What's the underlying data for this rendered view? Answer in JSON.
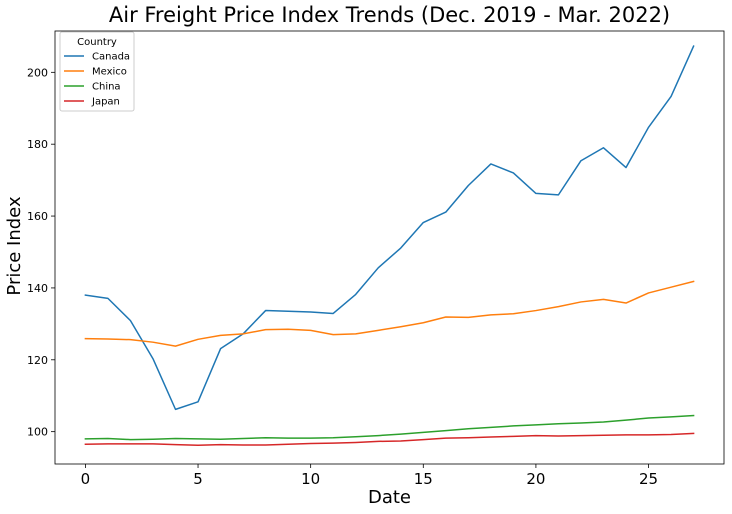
{
  "chart_data": {
    "type": "line",
    "title": "Air Freight Price Index Trends (Dec. 2019 - Mar. 2022)",
    "xlabel": "Date",
    "ylabel": "Price Index",
    "xlim": [
      -1.35,
      28.35
    ],
    "ylim": [
      91.0,
      211.5
    ],
    "x_ticks": [
      0,
      5,
      10,
      15,
      20,
      25
    ],
    "y_ticks": [
      100,
      120,
      140,
      160,
      180,
      200
    ],
    "grid": false,
    "legend_title": "Country",
    "legend_position": "top-left",
    "x": [
      0,
      1,
      2,
      3,
      4,
      5,
      6,
      7,
      8,
      9,
      10,
      11,
      12,
      13,
      14,
      15,
      16,
      17,
      18,
      19,
      20,
      21,
      22,
      23,
      24,
      25,
      26,
      27
    ],
    "series": [
      {
        "name": "Canada",
        "color": "#1f77b4",
        "values": [
          138.0,
          137.1,
          130.9,
          120.3,
          106.2,
          108.3,
          123.1,
          127.2,
          133.7,
          133.5,
          133.3,
          132.9,
          138.2,
          145.6,
          151.1,
          158.2,
          161.1,
          168.5,
          174.5,
          172.0,
          166.3,
          165.9,
          175.4,
          179.0,
          173.5,
          184.7,
          193.3,
          207.3
        ]
      },
      {
        "name": "Mexico",
        "color": "#ff7f0e",
        "values": [
          125.9,
          125.8,
          125.6,
          124.9,
          123.8,
          125.7,
          126.8,
          127.2,
          128.4,
          128.5,
          128.2,
          127.0,
          127.2,
          128.2,
          129.2,
          130.3,
          131.9,
          131.8,
          132.5,
          132.8,
          133.7,
          134.8,
          136.1,
          136.8,
          135.8,
          138.6,
          140.2,
          141.8
        ]
      },
      {
        "name": "China",
        "color": "#2ca02c",
        "values": [
          98.0,
          98.1,
          97.8,
          97.9,
          98.1,
          98.0,
          97.9,
          98.1,
          98.3,
          98.2,
          98.2,
          98.3,
          98.6,
          98.9,
          99.3,
          99.8,
          100.3,
          100.8,
          101.2,
          101.6,
          101.9,
          102.2,
          102.4,
          102.7,
          103.2,
          103.8,
          104.1,
          104.5
        ]
      },
      {
        "name": "Japan",
        "color": "#d62728",
        "values": [
          96.5,
          96.6,
          96.6,
          96.6,
          96.4,
          96.2,
          96.4,
          96.3,
          96.3,
          96.5,
          96.7,
          96.8,
          97.0,
          97.3,
          97.4,
          97.8,
          98.2,
          98.3,
          98.5,
          98.7,
          98.9,
          98.8,
          98.9,
          99.0,
          99.1,
          99.1,
          99.2,
          99.5
        ]
      }
    ]
  }
}
